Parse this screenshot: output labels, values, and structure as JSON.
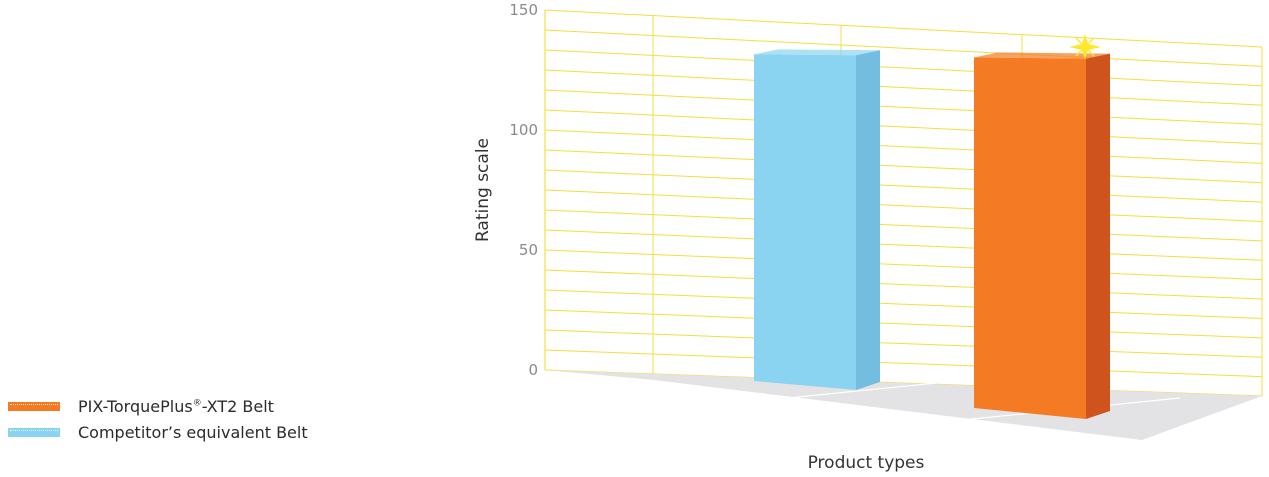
{
  "chart_data": {
    "type": "bar",
    "categories": [
      "Competitor's equivalent Belt",
      "PIX-TorquePlus®-XT2 Belt"
    ],
    "values": [
      138,
      138
    ],
    "colors": [
      "#8ad4f2",
      "#f47a24"
    ],
    "side_colors": [
      "#73bde0",
      "#cf531c"
    ],
    "grid_color": "#f3df3f",
    "floor_color": "#e3e3e5",
    "sparkle_color": "#ffe82a",
    "ylim": [
      0,
      150
    ],
    "yticks": [
      "0",
      "50",
      "100",
      "150"
    ],
    "ylabel": "Rating scale",
    "xlabel": "Product types",
    "grid": true,
    "three_d": true,
    "legend_position": "bottom-left",
    "legend": [
      {
        "name": "PIX-TorquePlus",
        "sup": "®",
        "name_suffix": "-XT2 Belt",
        "color": "#f47a24"
      },
      {
        "name": "Competitor’s equivalent Belt",
        "sup": "",
        "name_suffix": "",
        "color": "#8ad4f2"
      }
    ]
  }
}
